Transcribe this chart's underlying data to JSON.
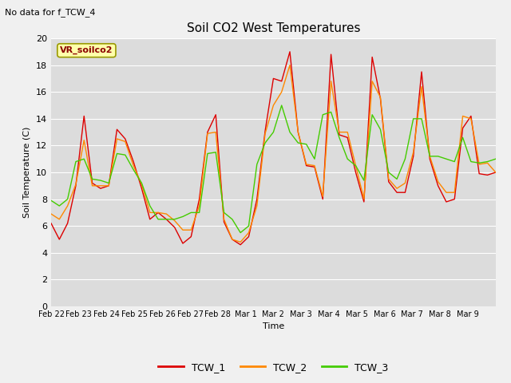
{
  "title": "Soil CO2 West Temperatures",
  "xlabel": "Time",
  "ylabel": "Soil Temperature (C)",
  "annotation_text": "No data for f_TCW_4",
  "legend_label": "VR_soilco2",
  "ylim": [
    0,
    20
  ],
  "background_color": "#dcdcdc",
  "fig_color": "#f0f0f0",
  "grid_color": "#ffffff",
  "series_colors": [
    "#dd0000",
    "#ff8800",
    "#44cc00"
  ],
  "series_labels": [
    "TCW_1",
    "TCW_2",
    "TCW_3"
  ],
  "x_tick_labels": [
    "Feb 22",
    "Feb 23",
    "Feb 24",
    "Feb 25",
    "Feb 26",
    "Feb 27",
    "Feb 28",
    "Mar 1",
    "Mar 2",
    "Mar 3",
    "Mar 4",
    "Mar 5",
    "Mar 6",
    "Mar 7",
    "Mar 8",
    "Mar 9"
  ],
  "TCW_1": [
    6.2,
    5.0,
    6.2,
    9.0,
    14.2,
    9.2,
    8.8,
    9.0,
    13.2,
    12.5,
    10.8,
    8.8,
    6.5,
    7.0,
    6.5,
    5.9,
    4.7,
    5.2,
    8.0,
    13.0,
    14.3,
    6.3,
    5.0,
    4.6,
    5.2,
    8.0,
    13.1,
    17.0,
    16.8,
    19.0,
    13.0,
    10.5,
    10.4,
    8.0,
    18.8,
    12.8,
    12.6,
    10.0,
    7.8,
    18.6,
    15.5,
    9.3,
    8.5,
    8.5,
    11.2,
    17.5,
    11.0,
    9.0,
    7.8,
    8.0,
    13.3,
    14.2,
    9.9,
    9.8,
    10.0
  ],
  "TCW_2": [
    6.9,
    6.5,
    7.5,
    9.1,
    12.4,
    9.0,
    9.0,
    9.0,
    12.5,
    12.3,
    10.5,
    9.1,
    7.0,
    7.0,
    6.9,
    6.4,
    5.7,
    5.7,
    7.5,
    12.9,
    13.0,
    6.5,
    5.0,
    4.8,
    5.5,
    7.5,
    12.9,
    15.0,
    16.0,
    18.0,
    13.0,
    10.6,
    10.5,
    8.2,
    16.8,
    13.0,
    13.0,
    10.5,
    8.0,
    16.8,
    15.6,
    9.5,
    8.8,
    9.2,
    11.5,
    16.4,
    11.2,
    9.3,
    8.5,
    8.5,
    14.2,
    14.0,
    10.6,
    10.7,
    10.0
  ],
  "TCW_3": [
    7.9,
    7.5,
    8.0,
    10.8,
    11.0,
    9.5,
    9.4,
    9.2,
    11.4,
    11.3,
    10.2,
    9.2,
    7.5,
    6.5,
    6.5,
    6.5,
    6.7,
    7.0,
    7.0,
    11.4,
    11.5,
    7.0,
    6.5,
    5.5,
    6.0,
    10.6,
    12.2,
    13.0,
    15.0,
    13.0,
    12.2,
    12.1,
    11.0,
    14.3,
    14.5,
    12.6,
    11.0,
    10.5,
    9.4,
    14.3,
    13.2,
    10.0,
    9.5,
    11.0,
    14.0,
    14.0,
    11.2,
    11.2,
    11.0,
    10.8,
    12.6,
    10.8,
    10.7,
    10.8,
    11.0
  ]
}
